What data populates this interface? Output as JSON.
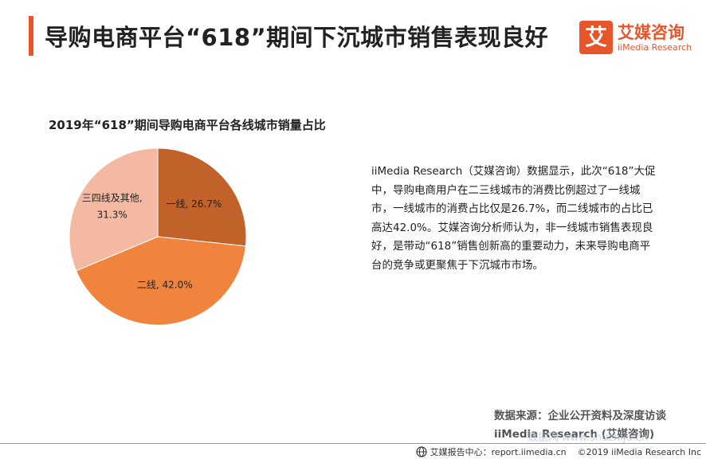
{
  "header": {
    "title": "导购电商平台“618”期间下沉城市销售表现良好",
    "logo_mark": "艾",
    "logo_cn": "艾媒咨询",
    "logo_en": "iiMedia Research"
  },
  "chart_title": "2019年“618”期间导购电商平台各线城市销量占比",
  "description": "iiMedia Research（艾媒咨询）数据显示，此次“618”大促中，导购电商用户在二三线城市的消费比例超过了一线城市，一线城市的消费占比仅是26.7%，而二线城市的占比已高达42.0%。艾媒咨询分析师认为，非一线城市销售表现良好，是带动“618”销售创新高的重要动力，未来导购电商平台的竞争或更聚焦于下沉城市市场。",
  "source": {
    "line1": "数据来源：企业公开资料及深度访谈",
    "line2": "iiMedia Research (艾媒咨询)"
  },
  "watermark": "数据网 www.shuzhiju.cn",
  "footer": {
    "center": "艾媒报告中心：report.iimedia.cn",
    "copyright": "©2019  iiMedia Research Inc"
  },
  "colors": {
    "accent": "#e8552a",
    "tier1": "#c0622a",
    "tier2": "#f0843c",
    "tier3": "#f4b9a2"
  },
  "chart_data": {
    "type": "pie",
    "title": "2019年“618”期间导购电商平台各线城市销量占比",
    "categories": [
      "一线",
      "二线",
      "三四线及其他"
    ],
    "values": [
      26.7,
      42.0,
      31.3
    ],
    "labels": [
      "一线, 26.7%",
      "二线, 42.0%",
      "三四线及其他,\n31.3%"
    ],
    "colors": [
      "#c0622a",
      "#f0843c",
      "#f4b9a2"
    ],
    "start_angle": "12 o'clock",
    "direction": "clockwise",
    "legend": "none"
  }
}
